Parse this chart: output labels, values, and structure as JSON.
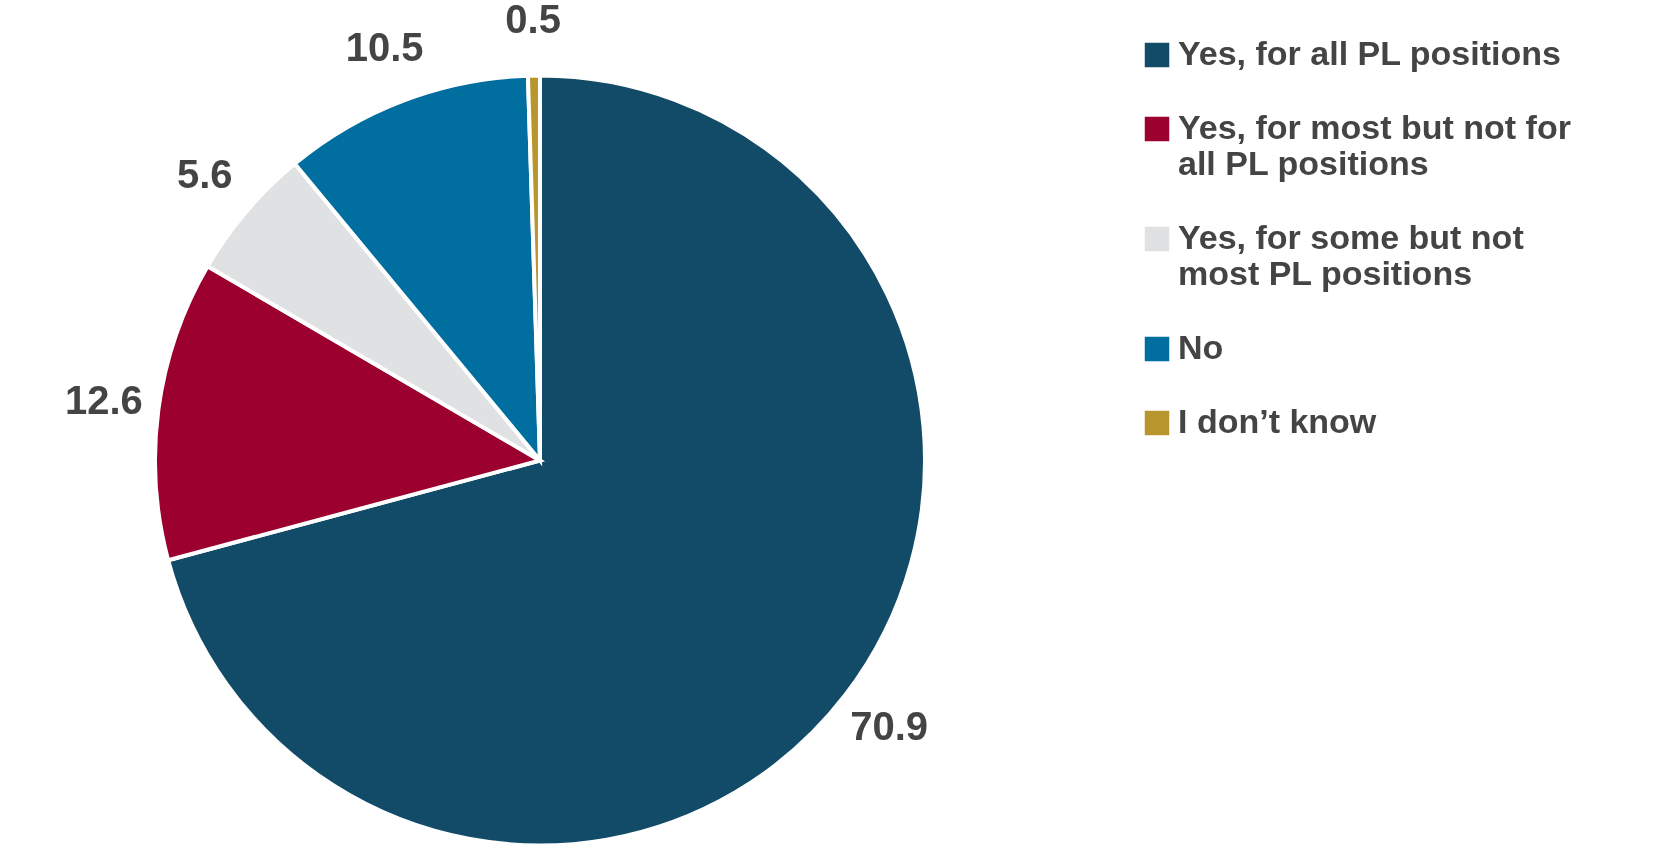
{
  "chart_data": {
    "type": "pie",
    "categories": [
      "Yes, for all PL positions",
      "Yes, for most but not for all PL positions",
      "Yes, for some but not most PL positions",
      "No",
      "I don’t know"
    ],
    "values": [
      70.9,
      12.6,
      5.6,
      10.5,
      0.5
    ],
    "colors": [
      "#114b68",
      "#9b002f",
      "#e0e1e3",
      "#006e9e",
      "#b8962e"
    ],
    "data_labels": true,
    "legend": "right"
  }
}
